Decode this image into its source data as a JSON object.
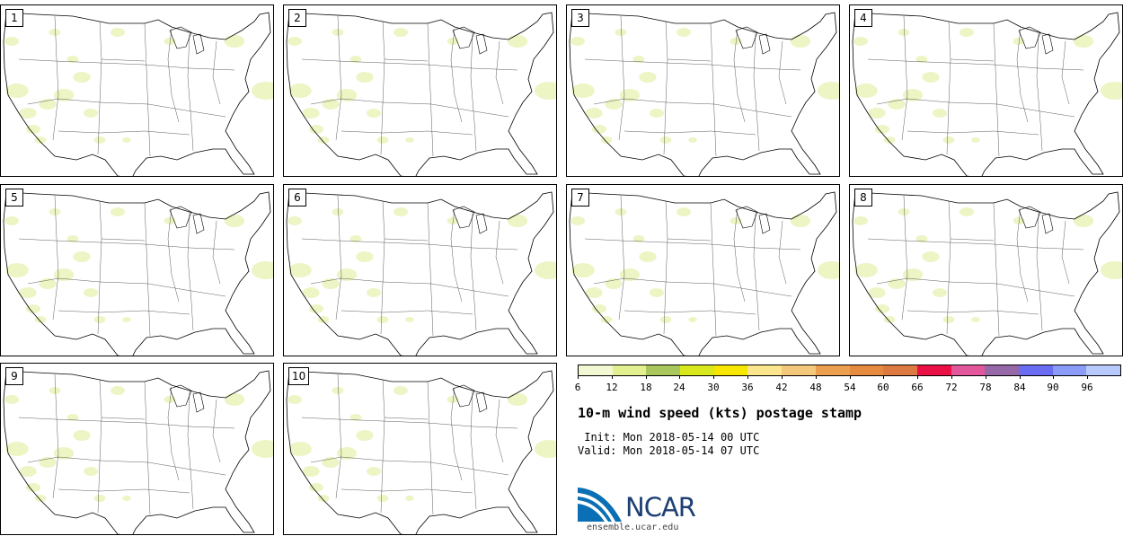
{
  "panels": [
    {
      "label": "1"
    },
    {
      "label": "2"
    },
    {
      "label": "3"
    },
    {
      "label": "4"
    },
    {
      "label": "5"
    },
    {
      "label": "6"
    },
    {
      "label": "7"
    },
    {
      "label": "8"
    },
    {
      "label": "9"
    },
    {
      "label": "10"
    }
  ],
  "legend": {
    "colors": [
      "#f2f8d2",
      "#e2f08f",
      "#a9c75c",
      "#d9e81c",
      "#f6e600",
      "#fce68d",
      "#f3c87b",
      "#ec9f4f",
      "#e68a3f",
      "#dd7a42",
      "#ea0f45",
      "#e2569c",
      "#9768a8",
      "#6a6cf2",
      "#8a9cf8",
      "#b8c9fb"
    ],
    "ticks": [
      "6",
      "12",
      "18",
      "24",
      "30",
      "36",
      "42",
      "48",
      "54",
      "60",
      "66",
      "72",
      "78",
      "84",
      "90",
      "96"
    ]
  },
  "title": "10-m wind speed (kts) postage stamp",
  "init": " Init: Mon 2018-05-14 00 UTC",
  "valid": "Valid: Mon 2018-05-14 07 UTC",
  "logo": {
    "text": "NCAR",
    "url": "ensemble.ucar.edu",
    "colors": {
      "blue": "#0a6fb4",
      "navy": "#1d3f73"
    }
  }
}
